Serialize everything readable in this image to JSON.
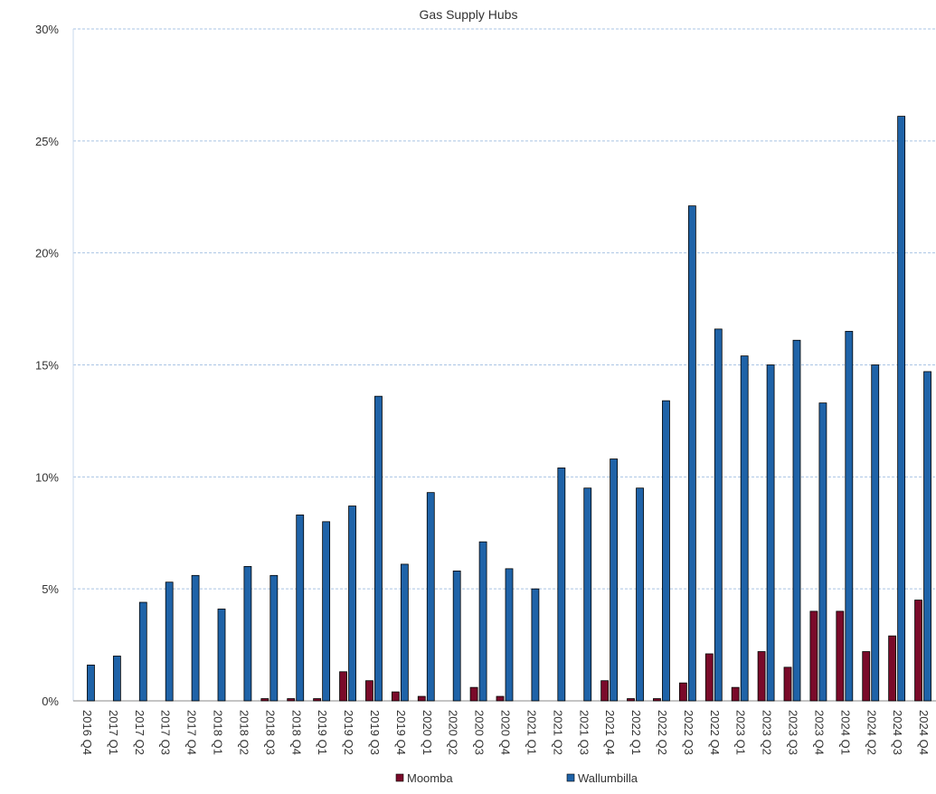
{
  "chart_data": {
    "type": "bar",
    "title": "Gas Supply Hubs",
    "xlabel": "",
    "ylabel": "",
    "ylim": [
      0,
      30
    ],
    "y_ticks": [
      "0%",
      "5%",
      "10%",
      "15%",
      "20%",
      "25%",
      "30%"
    ],
    "grid": "horizontal dashed",
    "legend_position": "bottom",
    "categories": [
      "2016 Q4",
      "2017 Q1",
      "2017 Q2",
      "2017 Q3",
      "2017 Q4",
      "2018 Q1",
      "2018 Q2",
      "2018 Q3",
      "2018 Q4",
      "2019 Q1",
      "2019 Q2",
      "2019 Q3",
      "2019 Q4",
      "2020 Q1",
      "2020 Q2",
      "2020 Q3",
      "2020 Q4",
      "2021 Q1",
      "2021 Q2",
      "2021 Q3",
      "2021 Q4",
      "2022 Q1",
      "2022 Q2",
      "2022 Q3",
      "2022 Q4",
      "2023 Q1",
      "2023 Q2",
      "2023 Q3",
      "2023 Q4",
      "2024 Q1",
      "2024 Q2",
      "2024 Q3",
      "2024 Q4"
    ],
    "series": [
      {
        "name": "Moomba",
        "color": "#7a0a2a",
        "values": [
          0,
          0,
          0,
          0,
          0,
          0,
          0,
          0.1,
          0.1,
          0.1,
          1.3,
          0.9,
          0.4,
          0.2,
          0,
          0.6,
          0.2,
          0,
          0,
          0,
          0.9,
          0.1,
          0.1,
          0.8,
          2.1,
          0.6,
          2.2,
          1.5,
          4.0,
          4.0,
          2.2,
          2.9,
          4.5
        ]
      },
      {
        "name": "Wallumbilla",
        "color": "#1f63a8",
        "values": [
          1.6,
          2.0,
          4.4,
          5.3,
          5.6,
          4.1,
          6.0,
          5.6,
          8.3,
          8.0,
          8.7,
          13.6,
          6.1,
          9.3,
          5.8,
          7.1,
          5.9,
          5.0,
          10.4,
          9.5,
          10.8,
          9.5,
          13.4,
          22.1,
          16.6,
          15.4,
          15.0,
          16.1,
          13.3,
          16.5,
          15.0,
          26.1,
          14.7
        ]
      }
    ]
  }
}
